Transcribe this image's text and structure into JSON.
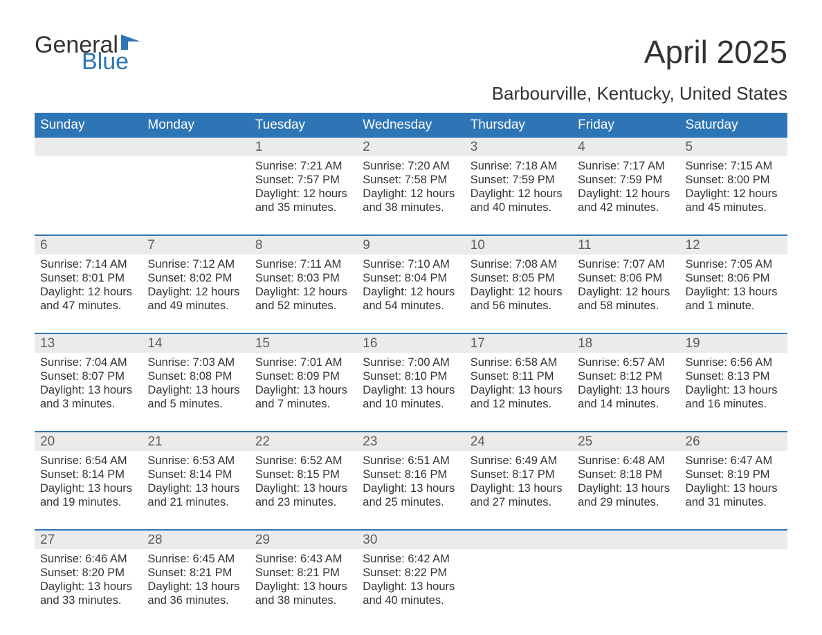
{
  "logo": {
    "general": "General",
    "blue": "Blue"
  },
  "title": "April 2025",
  "location": "Barbourville, Kentucky, United States",
  "colors": {
    "header_bg": "#2e75b6",
    "header_text": "#ffffff",
    "daynum_bg": "#ebebeb",
    "daynum_text": "#5c5c5c",
    "body_text": "#333333",
    "divider": "#2e75b6",
    "logo_blue": "#2e75b6",
    "background": "#ffffff"
  },
  "day_headers": [
    "Sunday",
    "Monday",
    "Tuesday",
    "Wednesday",
    "Thursday",
    "Friday",
    "Saturday"
  ],
  "weeks": [
    [
      null,
      null,
      {
        "n": "1",
        "sr": "Sunrise: 7:21 AM",
        "ss": "Sunset: 7:57 PM",
        "dl": "Daylight: 12 hours and 35 minutes."
      },
      {
        "n": "2",
        "sr": "Sunrise: 7:20 AM",
        "ss": "Sunset: 7:58 PM",
        "dl": "Daylight: 12 hours and 38 minutes."
      },
      {
        "n": "3",
        "sr": "Sunrise: 7:18 AM",
        "ss": "Sunset: 7:59 PM",
        "dl": "Daylight: 12 hours and 40 minutes."
      },
      {
        "n": "4",
        "sr": "Sunrise: 7:17 AM",
        "ss": "Sunset: 7:59 PM",
        "dl": "Daylight: 12 hours and 42 minutes."
      },
      {
        "n": "5",
        "sr": "Sunrise: 7:15 AM",
        "ss": "Sunset: 8:00 PM",
        "dl": "Daylight: 12 hours and 45 minutes."
      }
    ],
    [
      {
        "n": "6",
        "sr": "Sunrise: 7:14 AM",
        "ss": "Sunset: 8:01 PM",
        "dl": "Daylight: 12 hours and 47 minutes."
      },
      {
        "n": "7",
        "sr": "Sunrise: 7:12 AM",
        "ss": "Sunset: 8:02 PM",
        "dl": "Daylight: 12 hours and 49 minutes."
      },
      {
        "n": "8",
        "sr": "Sunrise: 7:11 AM",
        "ss": "Sunset: 8:03 PM",
        "dl": "Daylight: 12 hours and 52 minutes."
      },
      {
        "n": "9",
        "sr": "Sunrise: 7:10 AM",
        "ss": "Sunset: 8:04 PM",
        "dl": "Daylight: 12 hours and 54 minutes."
      },
      {
        "n": "10",
        "sr": "Sunrise: 7:08 AM",
        "ss": "Sunset: 8:05 PM",
        "dl": "Daylight: 12 hours and 56 minutes."
      },
      {
        "n": "11",
        "sr": "Sunrise: 7:07 AM",
        "ss": "Sunset: 8:06 PM",
        "dl": "Daylight: 12 hours and 58 minutes."
      },
      {
        "n": "12",
        "sr": "Sunrise: 7:05 AM",
        "ss": "Sunset: 8:06 PM",
        "dl": "Daylight: 13 hours and 1 minute."
      }
    ],
    [
      {
        "n": "13",
        "sr": "Sunrise: 7:04 AM",
        "ss": "Sunset: 8:07 PM",
        "dl": "Daylight: 13 hours and 3 minutes."
      },
      {
        "n": "14",
        "sr": "Sunrise: 7:03 AM",
        "ss": "Sunset: 8:08 PM",
        "dl": "Daylight: 13 hours and 5 minutes."
      },
      {
        "n": "15",
        "sr": "Sunrise: 7:01 AM",
        "ss": "Sunset: 8:09 PM",
        "dl": "Daylight: 13 hours and 7 minutes."
      },
      {
        "n": "16",
        "sr": "Sunrise: 7:00 AM",
        "ss": "Sunset: 8:10 PM",
        "dl": "Daylight: 13 hours and 10 minutes."
      },
      {
        "n": "17",
        "sr": "Sunrise: 6:58 AM",
        "ss": "Sunset: 8:11 PM",
        "dl": "Daylight: 13 hours and 12 minutes."
      },
      {
        "n": "18",
        "sr": "Sunrise: 6:57 AM",
        "ss": "Sunset: 8:12 PM",
        "dl": "Daylight: 13 hours and 14 minutes."
      },
      {
        "n": "19",
        "sr": "Sunrise: 6:56 AM",
        "ss": "Sunset: 8:13 PM",
        "dl": "Daylight: 13 hours and 16 minutes."
      }
    ],
    [
      {
        "n": "20",
        "sr": "Sunrise: 6:54 AM",
        "ss": "Sunset: 8:14 PM",
        "dl": "Daylight: 13 hours and 19 minutes."
      },
      {
        "n": "21",
        "sr": "Sunrise: 6:53 AM",
        "ss": "Sunset: 8:14 PM",
        "dl": "Daylight: 13 hours and 21 minutes."
      },
      {
        "n": "22",
        "sr": "Sunrise: 6:52 AM",
        "ss": "Sunset: 8:15 PM",
        "dl": "Daylight: 13 hours and 23 minutes."
      },
      {
        "n": "23",
        "sr": "Sunrise: 6:51 AM",
        "ss": "Sunset: 8:16 PM",
        "dl": "Daylight: 13 hours and 25 minutes."
      },
      {
        "n": "24",
        "sr": "Sunrise: 6:49 AM",
        "ss": "Sunset: 8:17 PM",
        "dl": "Daylight: 13 hours and 27 minutes."
      },
      {
        "n": "25",
        "sr": "Sunrise: 6:48 AM",
        "ss": "Sunset: 8:18 PM",
        "dl": "Daylight: 13 hours and 29 minutes."
      },
      {
        "n": "26",
        "sr": "Sunrise: 6:47 AM",
        "ss": "Sunset: 8:19 PM",
        "dl": "Daylight: 13 hours and 31 minutes."
      }
    ],
    [
      {
        "n": "27",
        "sr": "Sunrise: 6:46 AM",
        "ss": "Sunset: 8:20 PM",
        "dl": "Daylight: 13 hours and 33 minutes."
      },
      {
        "n": "28",
        "sr": "Sunrise: 6:45 AM",
        "ss": "Sunset: 8:21 PM",
        "dl": "Daylight: 13 hours and 36 minutes."
      },
      {
        "n": "29",
        "sr": "Sunrise: 6:43 AM",
        "ss": "Sunset: 8:21 PM",
        "dl": "Daylight: 13 hours and 38 minutes."
      },
      {
        "n": "30",
        "sr": "Sunrise: 6:42 AM",
        "ss": "Sunset: 8:22 PM",
        "dl": "Daylight: 13 hours and 40 minutes."
      },
      null,
      null,
      null
    ]
  ]
}
